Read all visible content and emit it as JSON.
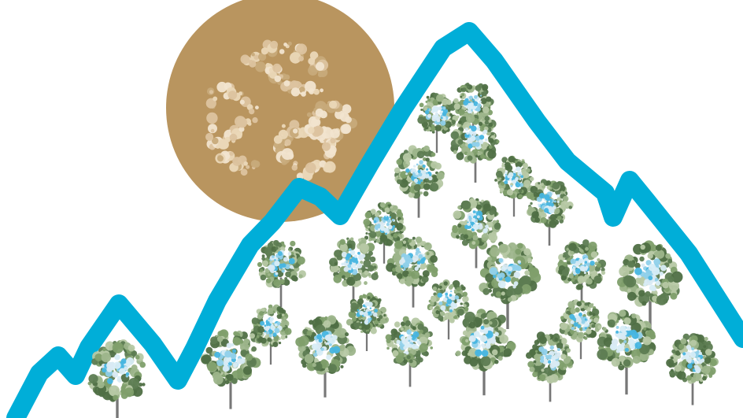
{
  "illustration": {
    "subject": "recycling-sun-over-forested-mountains",
    "colors": {
      "background": "#ffffff",
      "sun": "#b9955f",
      "recycle_symbol_light": "#f1e4cf",
      "recycle_symbol_mid": "#dcc39f",
      "mountain_outline": "#00aed8",
      "tree_dark": "#4f6f45",
      "tree_mid": "#7f9f6b",
      "tree_light": "#b6c8a4",
      "tree_globe_water": "#47b5e0",
      "tree_globe_land": "#d9eaf3",
      "trunk": "#5f5f5f"
    },
    "icons": [
      "sun-icon",
      "recycle-icon",
      "mountain-outline",
      "tree-icon"
    ]
  }
}
